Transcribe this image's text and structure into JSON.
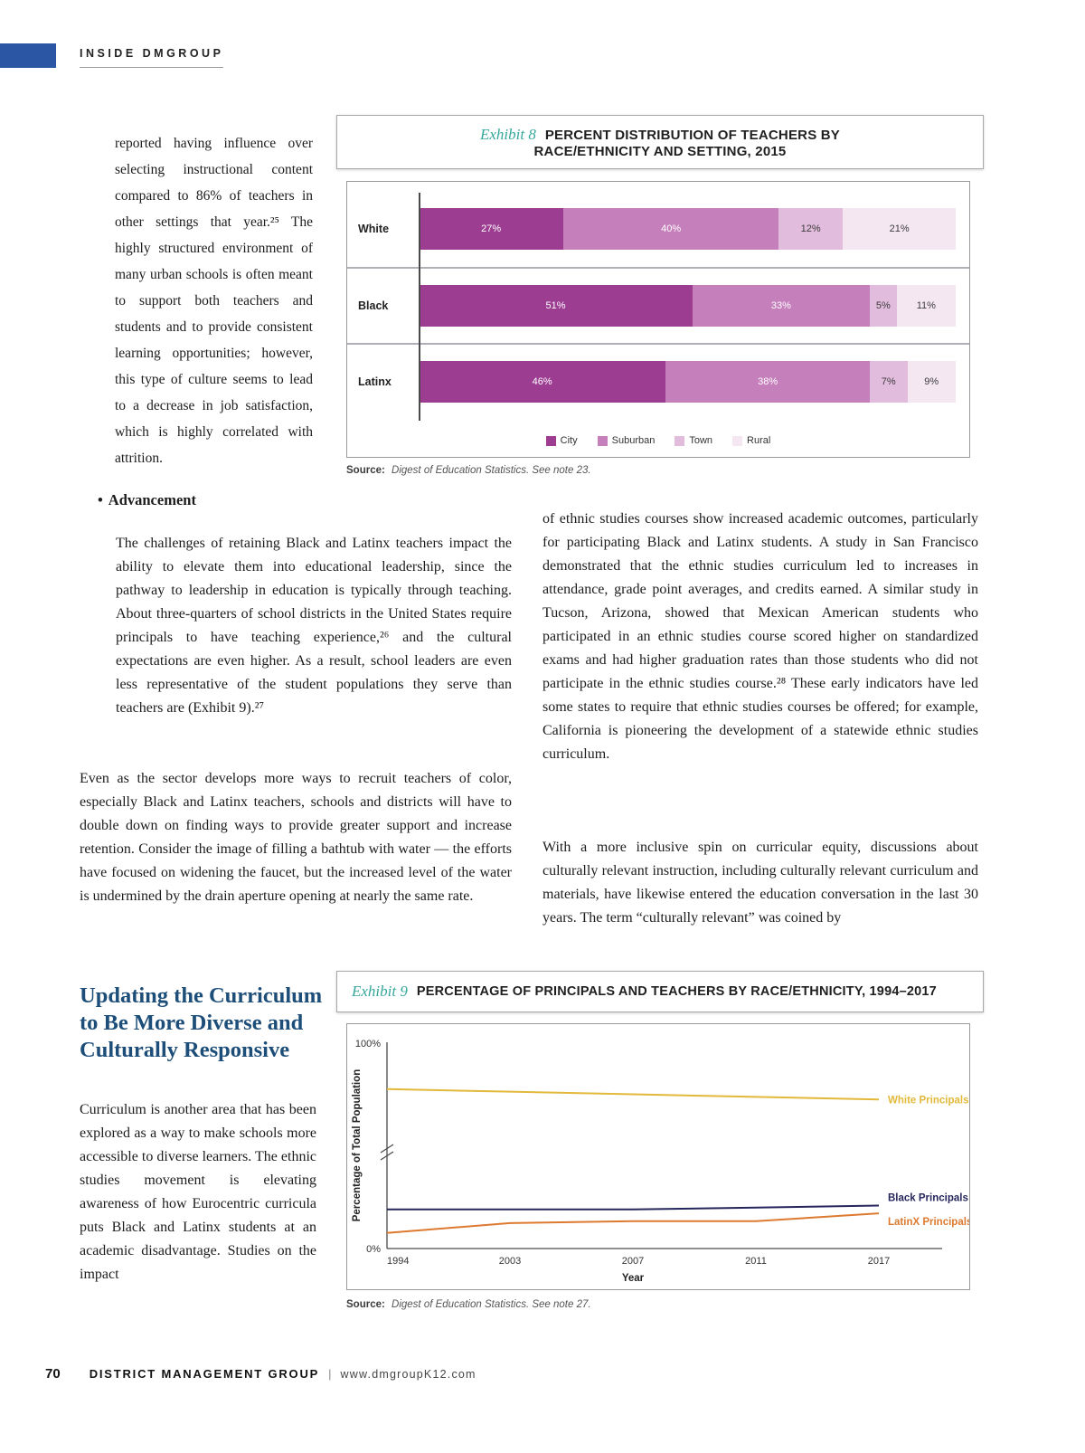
{
  "header": {
    "label": "INSIDE DMGROUP"
  },
  "intro": {
    "paragraph": "reported having influence over selecting instructional content compared to 86% of teachers in other settings that year.²⁵ The highly structured environment of many urban schools is often meant to support both teachers and students and to provide consistent learning opportunities; however, this type of culture seems to lead to a decrease in job satisfaction, which is highly correlated with attrition."
  },
  "advancement": {
    "bullet": "•",
    "heading": "Advancement",
    "paragraph": "The challenges of retaining Black and Latinx teachers impact the ability to elevate them into educational leadership, since the pathway to leadership in education is typically through teaching. About three-quarters of school districts in the United States require principals to have teaching experience,²⁶ and the cultural expectations are even higher. As a result, school leaders are even less representative of the student populations they serve than teachers are (Exhibit 9).²⁷"
  },
  "left_column": {
    "paragraph2": "Even as the sector develops more ways to recruit teachers of color, especially Black and Latinx teachers, schools and districts will have to double down on finding ways to provide greater support and increase retention. Consider the image of filling a bathtub with water — the efforts have focused on widening the faucet, but the increased level of the water is undermined by the drain aperture opening at nearly the same rate."
  },
  "right_column": {
    "paragraph1": "of ethnic studies courses show increased academic outcomes, particularly for participating Black and Latinx students. A study in San Francisco demonstrated that the ethnic studies curriculum led to increases in attendance, grade point averages, and credits earned. A similar study in Tucson, Arizona, showed that Mexican American students who participated in an ethnic studies course scored higher on standardized exams and had higher graduation rates than those students who did not participate in the ethnic studies course.²⁸ These early indicators have led some states to require that ethnic studies courses be offered; for example, California is pioneering the development of a statewide ethnic studies curriculum.",
    "paragraph2": "With a more inclusive spin on curricular equity, discussions about culturally relevant instruction, including culturally relevant curriculum and materials, have likewise entered the education conversation in the last 30 years. The term “culturally relevant” was coined by"
  },
  "curriculum_section": {
    "heading": "Updating the Curriculum to Be More Diverse and Culturally Responsive",
    "paragraph": "Curriculum is another area that has been explored as a way to make schools more accessible to diverse learners. The ethnic studies movement is elevating awareness of how Eurocentric curricula puts Black and Latinx students at an academic disadvantage. Studies on the impact"
  },
  "exhibit8": {
    "label": "Exhibit 8",
    "title_line1": "PERCENT DISTRIBUTION OF TEACHERS BY",
    "title_line2": "RACE/ETHNICITY AND SETTING, 2015",
    "source_label": "Source:",
    "source_text": "Digest of Education Statistics. See note 23.",
    "chart_data": {
      "type": "bar",
      "orientation": "horizontal-stacked",
      "title": "PERCENT DISTRIBUTION OF TEACHERS BY RACE/ETHNICITY AND SETTING, 2015",
      "categories": [
        "White",
        "Black",
        "Latinx"
      ],
      "series": [
        {
          "name": "City",
          "color": "#9c3d92",
          "values": [
            27,
            51,
            46
          ]
        },
        {
          "name": "Suburban",
          "color": "#c57fbb",
          "values": [
            40,
            33,
            38
          ]
        },
        {
          "name": "Town",
          "color": "#e2bcdc",
          "values": [
            12,
            5,
            7
          ]
        },
        {
          "name": "Rural",
          "color": "#f4e7f2",
          "values": [
            21,
            11,
            9
          ]
        }
      ],
      "value_suffix": "%",
      "legend_position": "bottom"
    }
  },
  "exhibit9": {
    "label": "Exhibit 9",
    "title": "PERCENTAGE OF PRINCIPALS AND TEACHERS BY RACE/ETHNICITY, 1994–2017",
    "source_label": "Source:",
    "source_text": "Digest of Education Statistics. See note 27.",
    "chart_data": {
      "type": "line",
      "title": "PERCENTAGE OF PRINCIPALS AND TEACHERS BY RACE/ETHNICITY, 1994–2017",
      "x": [
        "1994",
        "2003",
        "2007",
        "2011",
        "2017"
      ],
      "xlabel": "Year",
      "ylabel": "Percentage of Total Population",
      "y_ticks": [
        "100%",
        "0%"
      ],
      "ylim": [
        0,
        100
      ],
      "y_axis_break": true,
      "series": [
        {
          "name": "White Principals",
          "color": "#e2b93b",
          "values": [
            91,
            90.5,
            90,
            89.5,
            89
          ]
        },
        {
          "name": "Black Principals",
          "color": "#26265c",
          "values": [
            10,
            10,
            10,
            10.5,
            11
          ]
        },
        {
          "name": "LatinX Principals",
          "color": "#dd7a30",
          "values": [
            4,
            6.5,
            7,
            7,
            9
          ]
        }
      ]
    }
  },
  "footer": {
    "page_number": "70",
    "org": "DISTRICT MANAGEMENT GROUP",
    "separator": "|",
    "url": "www.dmgroupK12.com"
  }
}
